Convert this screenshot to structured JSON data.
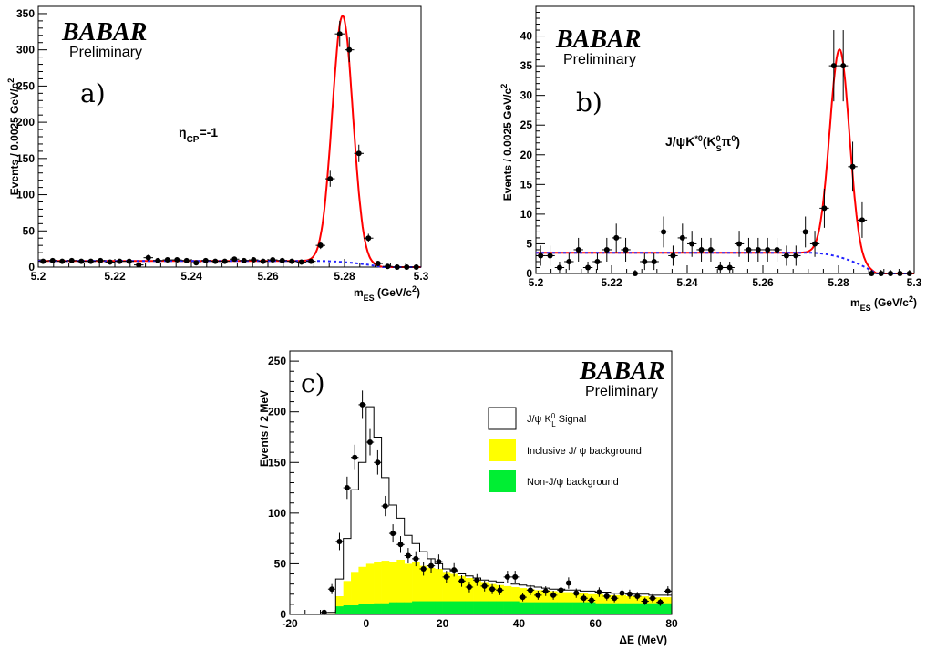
{
  "chart_data": [
    {
      "id": "a",
      "type": "scatter",
      "panel_label": "a)",
      "brand": "BABAR",
      "brand_sub": "Preliminary",
      "annotation": "ηCP=-1",
      "xlabel": "mES (GeV/c2)",
      "ylabel": "Events / 0.0025 GeV/c2",
      "xlim": [
        5.2,
        5.3
      ],
      "ylim": [
        0,
        360
      ],
      "xticks": [
        "5.2",
        "5.22",
        "5.24",
        "5.26",
        "5.28",
        "5.3"
      ],
      "yticks": [
        "0",
        "50",
        "100",
        "150",
        "200",
        "250",
        "300",
        "350"
      ],
      "points": {
        "x": [
          5.20125,
          5.20375,
          5.20625,
          5.20875,
          5.21125,
          5.21375,
          5.21625,
          5.21875,
          5.22125,
          5.22375,
          5.22625,
          5.22875,
          5.23125,
          5.23375,
          5.23625,
          5.23875,
          5.24125,
          5.24375,
          5.24625,
          5.24875,
          5.25125,
          5.25375,
          5.25625,
          5.25875,
          5.26125,
          5.26375,
          5.26625,
          5.26875,
          5.27125,
          5.27375,
          5.27625,
          5.27875,
          5.28125,
          5.28375,
          5.28625,
          5.28875,
          5.29125,
          5.29375,
          5.29625,
          5.29875
        ],
        "y": [
          8,
          9,
          8,
          9,
          8,
          8,
          9,
          7,
          8,
          8,
          3,
          13,
          9,
          10,
          10,
          9,
          6,
          9,
          8,
          8,
          11,
          9,
          10,
          8,
          10,
          9,
          8,
          7,
          8,
          30,
          122,
          322,
          300,
          157,
          40,
          5,
          1,
          0,
          0,
          0
        ],
        "err": [
          3,
          3,
          3,
          3,
          3,
          3,
          3,
          3,
          3,
          3,
          2,
          4,
          3,
          3,
          3,
          3,
          2.5,
          3,
          3,
          3,
          3,
          3,
          3,
          3,
          3,
          3,
          3,
          3,
          3,
          5,
          11,
          18,
          17,
          12,
          6,
          2,
          1,
          1,
          1,
          1
        ]
      },
      "curves": [
        {
          "name": "total fit",
          "color": "#ff0000",
          "style": "solid",
          "mean": 5.2795,
          "sigma": 0.0027,
          "amp": 340,
          "bkg_c": 8.5,
          "bkg_end": 5.29
        },
        {
          "name": "background",
          "color": "#2222ff",
          "style": "dotted",
          "bkg_c": 8.5,
          "bkg_end": 5.29
        }
      ]
    },
    {
      "id": "b",
      "type": "scatter",
      "panel_label": "b)",
      "brand": "BABAR",
      "brand_sub": "Preliminary",
      "annotation": "J/ψK*0(K0Sπ0)",
      "xlabel": "mES (GeV/c2)",
      "ylabel": "Events / 0.0025 GeV/c2",
      "xlim": [
        5.2,
        5.3
      ],
      "ylim": [
        0,
        45
      ],
      "xticks": [
        "5.2",
        "5.22",
        "5.24",
        "5.26",
        "5.28",
        "5.3"
      ],
      "yticks": [
        "0",
        "5",
        "10",
        "15",
        "20",
        "25",
        "30",
        "35",
        "40"
      ],
      "points": {
        "x": [
          5.20125,
          5.20375,
          5.20625,
          5.20875,
          5.21125,
          5.21375,
          5.21625,
          5.21875,
          5.22125,
          5.22375,
          5.22625,
          5.22875,
          5.23125,
          5.23375,
          5.23625,
          5.23875,
          5.24125,
          5.24375,
          5.24625,
          5.24875,
          5.25125,
          5.25375,
          5.25625,
          5.25875,
          5.26125,
          5.26375,
          5.26625,
          5.26875,
          5.27125,
          5.27375,
          5.27625,
          5.27875,
          5.28125,
          5.28375,
          5.28625,
          5.28875,
          5.29125,
          5.29375,
          5.29625,
          5.29875
        ],
        "y": [
          3,
          3,
          1,
          2,
          4,
          1,
          2,
          4,
          6,
          4,
          0,
          2,
          2,
          7,
          3,
          6,
          5,
          4,
          4,
          1,
          1,
          5,
          4,
          4,
          4,
          4,
          3,
          3,
          7,
          5,
          11,
          35,
          35,
          18,
          9,
          0,
          0,
          0,
          0,
          0
        ],
        "err": [
          1.7,
          1.7,
          1,
          1.4,
          2,
          1,
          1.4,
          2,
          2.4,
          2,
          0.6,
          1.4,
          1.4,
          2.6,
          1.7,
          2.4,
          2.2,
          2,
          2,
          1,
          1,
          2.2,
          2,
          2,
          2,
          2,
          1.7,
          1.7,
          2.6,
          2.2,
          3.3,
          6,
          6,
          4.2,
          3,
          0.6,
          0.6,
          0.6,
          0.6,
          0.6
        ]
      },
      "curves": [
        {
          "name": "total fit",
          "color": "#ff0000",
          "style": "solid",
          "mean": 5.2803,
          "sigma": 0.0026,
          "amp": 35,
          "bkg_c": 3.5,
          "bkg_end": 5.29
        },
        {
          "name": "background",
          "color": "#2222ff",
          "style": "dotted",
          "bkg_c": 3.5,
          "bkg_end": 5.29
        }
      ]
    },
    {
      "id": "c",
      "type": "bar",
      "panel_label": "c)",
      "brand": "BABAR",
      "brand_sub": "Preliminary",
      "xlabel": "ΔE (MeV)",
      "ylabel": "Events / 2 MeV",
      "xlim": [
        -20,
        80
      ],
      "ylim": [
        0,
        260
      ],
      "xticks": [
        "-20",
        "0",
        "20",
        "40",
        "60",
        "80"
      ],
      "yticks": [
        "0",
        "50",
        "100",
        "150",
        "200",
        "250"
      ],
      "bin_edges_start": -10,
      "bin_width": 2,
      "series": [
        {
          "name": "J/ψ K0L Signal",
          "color": "#ffffff",
          "values": [
            2,
            35,
            75,
            123,
            150,
            205,
            175,
            135,
            108,
            95,
            78,
            70,
            62,
            55,
            50,
            45,
            43,
            40,
            38,
            36,
            34,
            33,
            32,
            31,
            30,
            29,
            28,
            27,
            26,
            25,
            25,
            24,
            24,
            23,
            23,
            22,
            22,
            21,
            21,
            20,
            20,
            20,
            19,
            19,
            19
          ]
        },
        {
          "name": "Inclusive J/ ψ background",
          "color": "#ffff00",
          "values": [
            1,
            18,
            33,
            42,
            47,
            50,
            52,
            53,
            52,
            54,
            50,
            52,
            48,
            46,
            45,
            42,
            40,
            38,
            36,
            34,
            32,
            30,
            29,
            28,
            27,
            26,
            25,
            24,
            24,
            23,
            22,
            22,
            21,
            21,
            20,
            20,
            19,
            19,
            19,
            18,
            18,
            18,
            17,
            17,
            17
          ]
        },
        {
          "name": "Non-J/ψ background",
          "color": "#00ee33",
          "values": [
            0,
            8,
            9,
            9,
            10,
            10,
            11,
            11,
            12,
            12,
            12,
            13,
            13,
            13,
            13,
            13,
            13,
            13,
            13,
            13,
            13,
            13,
            13,
            13,
            13,
            12,
            12,
            12,
            12,
            12,
            12,
            12,
            12,
            12,
            12,
            11,
            11,
            11,
            11,
            11,
            11,
            11,
            11,
            11,
            11
          ]
        }
      ],
      "points": {
        "x": [
          -11,
          -9,
          -7,
          -5,
          -3,
          -1,
          1,
          3,
          5,
          7,
          9,
          11,
          13,
          15,
          17,
          19,
          21,
          23,
          25,
          27,
          29,
          31,
          33,
          35,
          37,
          39,
          41,
          43,
          45,
          47,
          49,
          51,
          53,
          55,
          57,
          59,
          61,
          63,
          65,
          67,
          69,
          71,
          73,
          75,
          77,
          79
        ],
        "y": [
          2,
          25,
          72,
          125,
          155,
          207,
          170,
          150,
          107,
          80,
          69,
          58,
          55,
          45,
          48,
          52,
          37,
          44,
          33,
          27,
          34,
          28,
          25,
          24,
          37,
          37,
          17,
          24,
          19,
          23,
          19,
          24,
          31,
          21,
          16,
          14,
          22,
          18,
          16,
          21,
          20,
          18,
          13,
          16,
          12,
          23
        ],
        "err": [
          1.4,
          5,
          8.5,
          11,
          12.5,
          14,
          13,
          12,
          10,
          9,
          8.3,
          7.6,
          7.4,
          6.7,
          6.9,
          7.2,
          6.1,
          6.6,
          5.7,
          5.2,
          5.8,
          5.3,
          5,
          4.9,
          6.1,
          6.1,
          4.1,
          4.9,
          4.4,
          4.8,
          4.4,
          4.9,
          5.6,
          4.6,
          4,
          3.7,
          4.7,
          4.2,
          4,
          4.6,
          4.5,
          4.2,
          3.6,
          4,
          3.5,
          4.8
        ]
      }
    }
  ]
}
